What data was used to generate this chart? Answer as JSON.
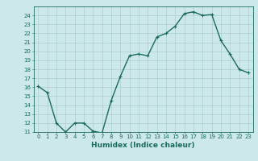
{
  "title": "",
  "xlabel": "Humidex (Indice chaleur)",
  "ylabel": "",
  "x": [
    0,
    1,
    2,
    3,
    4,
    5,
    6,
    7,
    8,
    9,
    10,
    11,
    12,
    13,
    14,
    15,
    16,
    17,
    18,
    19,
    20,
    21,
    22,
    23
  ],
  "y": [
    16.1,
    15.4,
    12.0,
    11.0,
    12.0,
    12.0,
    11.1,
    10.9,
    14.5,
    17.2,
    19.5,
    19.7,
    19.5,
    21.6,
    22.0,
    22.8,
    24.2,
    24.4,
    24.0,
    24.1,
    21.2,
    19.7,
    18.0,
    17.6
  ],
  "line_color": "#1a6b5a",
  "marker_color": "#1a6b5a",
  "bg_color": "#cce8e8",
  "grid_color": "#aacfcf",
  "axis_color": "#1a6b5a",
  "text_color": "#1a6b5a",
  "ylim": [
    11,
    25
  ],
  "xlim": [
    -0.5,
    23.5
  ],
  "yticks": [
    11,
    12,
    13,
    14,
    15,
    16,
    17,
    18,
    19,
    20,
    21,
    22,
    23,
    24
  ],
  "xticks": [
    0,
    1,
    2,
    3,
    4,
    5,
    6,
    7,
    8,
    9,
    10,
    11,
    12,
    13,
    14,
    15,
    16,
    17,
    18,
    19,
    20,
    21,
    22,
    23
  ],
  "tick_fontsize": 5,
  "label_fontsize": 6.5,
  "marker_size": 2.5,
  "line_width": 1.0
}
